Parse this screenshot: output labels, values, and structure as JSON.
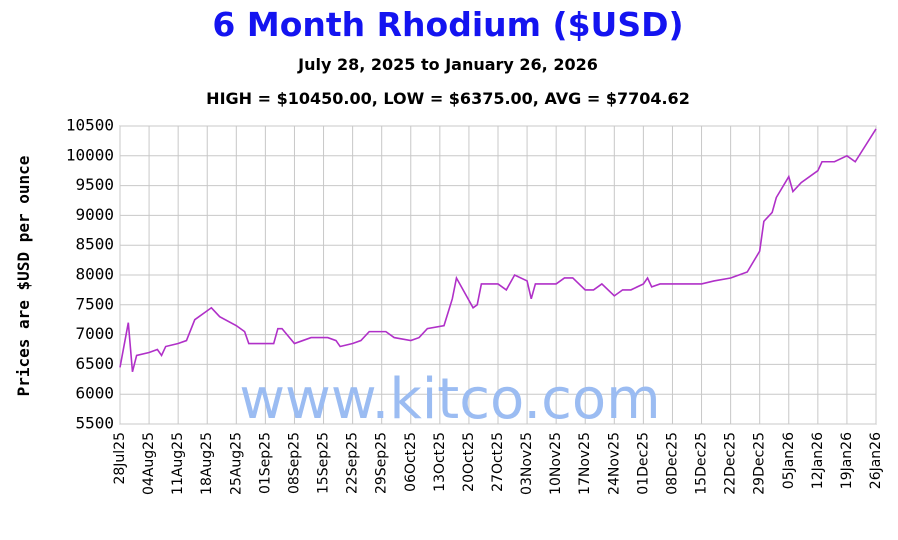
{
  "chart_data": {
    "type": "line",
    "title": "6 Month Rhodium ($USD)",
    "subtitle": "July 28, 2025 to January 26, 2026",
    "stats": "HIGH = $10450.00, LOW = $6375.00, AVG = $7704.62",
    "y_label": "Prices are $USD per ounce",
    "watermark": "www.kitco.com",
    "color": "#b030c8",
    "grid": true,
    "x": [
      "2025-07-28",
      "2025-07-30",
      "2025-07-31",
      "2025-08-01",
      "2025-08-04",
      "2025-08-06",
      "2025-08-07",
      "2025-08-08",
      "2025-08-11",
      "2025-08-13",
      "2025-08-15",
      "2025-08-18",
      "2025-08-19",
      "2025-08-21",
      "2025-08-25",
      "2025-08-27",
      "2025-08-28",
      "2025-09-01",
      "2025-09-03",
      "2025-09-04",
      "2025-09-05",
      "2025-09-08",
      "2025-09-10",
      "2025-09-12",
      "2025-09-16",
      "2025-09-18",
      "2025-09-19",
      "2025-09-22",
      "2025-09-24",
      "2025-09-26",
      "2025-09-30",
      "2025-10-02",
      "2025-10-06",
      "2025-10-08",
      "2025-10-10",
      "2025-10-14",
      "2025-10-16",
      "2025-10-17",
      "2025-10-21",
      "2025-10-22",
      "2025-10-23",
      "2025-10-27",
      "2025-10-29",
      "2025-10-31",
      "2025-11-03",
      "2025-11-04",
      "2025-11-05",
      "2025-11-10",
      "2025-11-12",
      "2025-11-14",
      "2025-11-17",
      "2025-11-19",
      "2025-11-21",
      "2025-11-24",
      "2025-11-26",
      "2025-11-28",
      "2025-12-01",
      "2025-12-02",
      "2025-12-03",
      "2025-12-05",
      "2025-12-15",
      "2025-12-18",
      "2025-12-22",
      "2025-12-24",
      "2025-12-26",
      "2025-12-29",
      "2025-12-30",
      "2026-01-01",
      "2026-01-02",
      "2026-01-05",
      "2026-01-06",
      "2026-01-08",
      "2026-01-12",
      "2026-01-13",
      "2026-01-16",
      "2026-01-19",
      "2026-01-21",
      "2026-01-26"
    ],
    "values": [
      6450,
      7200,
      6375,
      6650,
      6700,
      6750,
      6650,
      6800,
      6850,
      6900,
      7250,
      7400,
      7450,
      7300,
      7150,
      7050,
      6850,
      6850,
      6850,
      7100,
      7100,
      6850,
      6900,
      6950,
      6950,
      6900,
      6800,
      6850,
      6900,
      7050,
      7050,
      6950,
      6900,
      6950,
      7100,
      7150,
      7600,
      7950,
      7450,
      7500,
      7850,
      7850,
      7750,
      8000,
      7900,
      7600,
      7850,
      7850,
      7950,
      7950,
      7750,
      7750,
      7850,
      7650,
      7750,
      7750,
      7850,
      7950,
      7800,
      7850,
      7850,
      7900,
      7950,
      8000,
      8050,
      8400,
      8900,
      9050,
      9300,
      9650,
      9400,
      9550,
      9750,
      9900,
      9900,
      10000,
      9900,
      10450
    ],
    "xlim": [
      "2025-07-28",
      "2026-01-26"
    ],
    "xticks": [
      {
        "value": "2025-07-28",
        "label": "28Jul25"
      },
      {
        "value": "2025-08-04",
        "label": "04Aug25"
      },
      {
        "value": "2025-08-11",
        "label": "11Aug25"
      },
      {
        "value": "2025-08-18",
        "label": "18Aug25"
      },
      {
        "value": "2025-08-25",
        "label": "25Aug25"
      },
      {
        "value": "2025-09-01",
        "label": "01Sep25"
      },
      {
        "value": "2025-09-08",
        "label": "08Sep25"
      },
      {
        "value": "2025-09-15",
        "label": "15Sep25"
      },
      {
        "value": "2025-09-22",
        "label": "22Sep25"
      },
      {
        "value": "2025-09-29",
        "label": "29Sep25"
      },
      {
        "value": "2025-10-06",
        "label": "06Oct25"
      },
      {
        "value": "2025-10-13",
        "label": "13Oct25"
      },
      {
        "value": "2025-10-20",
        "label": "20Oct25"
      },
      {
        "value": "2025-10-27",
        "label": "27Oct25"
      },
      {
        "value": "2025-11-03",
        "label": "03Nov25"
      },
      {
        "value": "2025-11-10",
        "label": "10Nov25"
      },
      {
        "value": "2025-11-17",
        "label": "17Nov25"
      },
      {
        "value": "2025-11-24",
        "label": "24Nov25"
      },
      {
        "value": "2025-12-01",
        "label": "01Dec25"
      },
      {
        "value": "2025-12-08",
        "label": "08Dec25"
      },
      {
        "value": "2025-12-15",
        "label": "15Dec25"
      },
      {
        "value": "2025-12-22",
        "label": "22Dec25"
      },
      {
        "value": "2025-12-29",
        "label": "29Dec25"
      },
      {
        "value": "2026-01-05",
        "label": "05Jan26"
      },
      {
        "value": "2026-01-12",
        "label": "12Jan26"
      },
      {
        "value": "2026-01-19",
        "label": "19Jan26"
      },
      {
        "value": "2026-01-26",
        "label": "26Jan26"
      }
    ],
    "ylim": [
      5500,
      10500
    ],
    "yticks": [
      5500,
      6000,
      6500,
      7000,
      7500,
      8000,
      8500,
      9000,
      9500,
      10000,
      10500
    ]
  }
}
